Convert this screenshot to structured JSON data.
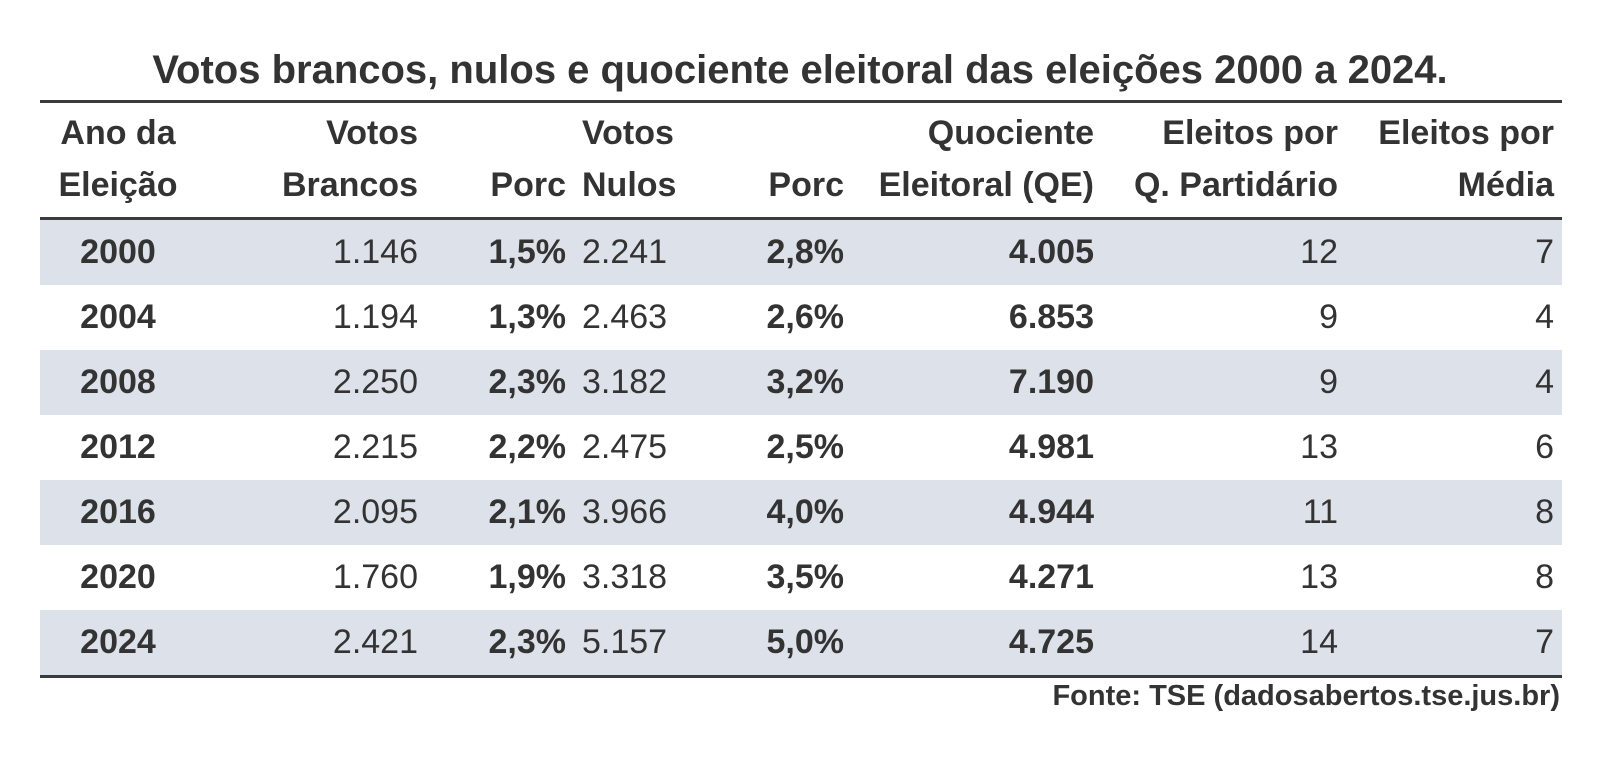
{
  "title": "Votos brancos, nulos e quociente eleitoral das eleições 2000 a 2024.",
  "table": {
    "headers": [
      {
        "line1": "Ano da",
        "line2": "Eleição"
      },
      {
        "line1": "Votos",
        "line2": "Brancos"
      },
      {
        "line1": "",
        "line2": "Porc"
      },
      {
        "line1": "Votos",
        "line2": "Nulos"
      },
      {
        "line1": "",
        "line2": "Porc"
      },
      {
        "line1": "Quociente",
        "line2": "Eleitoral (QE)"
      },
      {
        "line1": "Eleitos por",
        "line2": "Q. Partidário"
      },
      {
        "line1": "Eleitos por",
        "line2": "Média"
      }
    ],
    "rows": [
      {
        "ano": "2000",
        "brancos": "1.146",
        "porc_brancos": "1,5%",
        "nulos": "2.241",
        "porc_nulos": "2,8%",
        "qe": "4.005",
        "eleitos_qp": "12",
        "eleitos_media": "7"
      },
      {
        "ano": "2004",
        "brancos": "1.194",
        "porc_brancos": "1,3%",
        "nulos": "2.463",
        "porc_nulos": "2,6%",
        "qe": "6.853",
        "eleitos_qp": "9",
        "eleitos_media": "4"
      },
      {
        "ano": "2008",
        "brancos": "2.250",
        "porc_brancos": "2,3%",
        "nulos": "3.182",
        "porc_nulos": "3,2%",
        "qe": "7.190",
        "eleitos_qp": "9",
        "eleitos_media": "4"
      },
      {
        "ano": "2012",
        "brancos": "2.215",
        "porc_brancos": "2,2%",
        "nulos": "2.475",
        "porc_nulos": "2,5%",
        "qe": "4.981",
        "eleitos_qp": "13",
        "eleitos_media": "6"
      },
      {
        "ano": "2016",
        "brancos": "2.095",
        "porc_brancos": "2,1%",
        "nulos": "3.966",
        "porc_nulos": "4,0%",
        "qe": "4.944",
        "eleitos_qp": "11",
        "eleitos_media": "8"
      },
      {
        "ano": "2020",
        "brancos": "1.760",
        "porc_brancos": "1,9%",
        "nulos": "3.318",
        "porc_nulos": "3,5%",
        "qe": "4.271",
        "eleitos_qp": "13",
        "eleitos_media": "8"
      },
      {
        "ano": "2024",
        "brancos": "2.421",
        "porc_brancos": "2,3%",
        "nulos": "5.157",
        "porc_nulos": "5,0%",
        "qe": "4.725",
        "eleitos_qp": "14",
        "eleitos_media": "7"
      }
    ]
  },
  "source": "Fonte: TSE (dadosabertos.tse.jus.br)",
  "colors": {
    "text": "#333333",
    "row_shade": "#dde1ea",
    "rule": "#3b3b3b"
  }
}
